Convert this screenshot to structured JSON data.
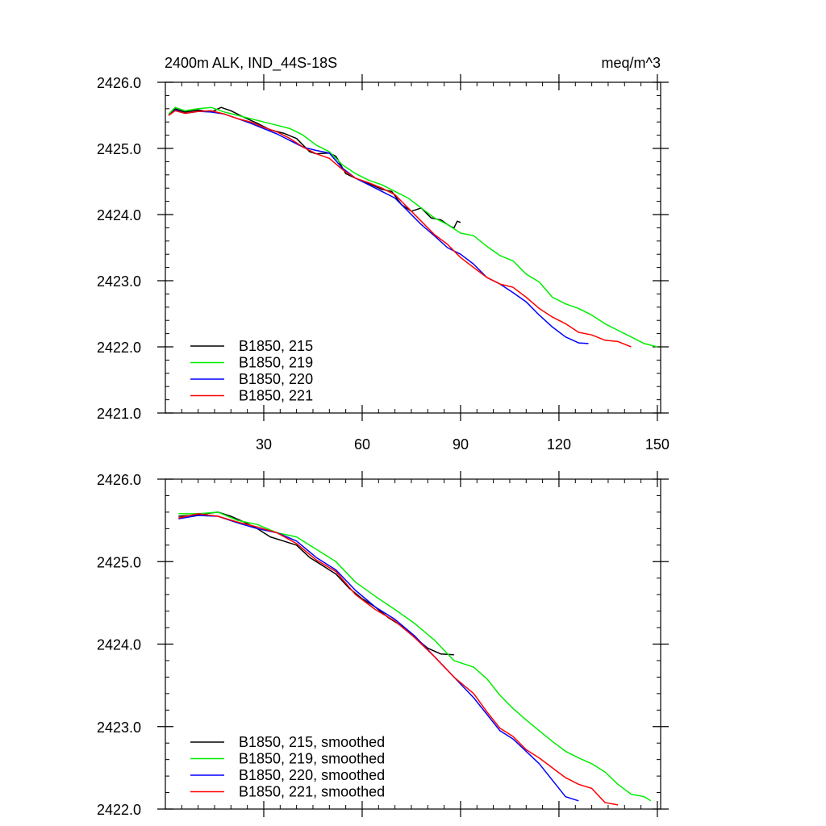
{
  "chart_data": [
    {
      "type": "line",
      "title": "2400m ALK, IND_44S-18S",
      "units": "meq/m^3",
      "xlim": [
        0,
        151
      ],
      "ylim": [
        2421.0,
        2426.0
      ],
      "xticks": [
        30,
        60,
        90,
        120,
        150
      ],
      "yticks": [
        2421.0,
        2422.0,
        2423.0,
        2424.0,
        2425.0,
        2426.0
      ],
      "ytick_labels": [
        "2421.0",
        "2422.0",
        "2423.0",
        "2424.0",
        "2425.0",
        "2426.0"
      ],
      "legend_position": "bottom-left",
      "series": [
        {
          "name": "B1850, 215",
          "color": "#000000",
          "x": [
            1,
            3,
            6,
            10,
            14,
            17,
            20,
            24,
            28,
            32,
            36,
            40,
            44,
            46,
            50,
            52,
            55,
            58,
            62,
            66,
            69,
            72,
            75,
            78,
            81,
            84,
            86,
            87,
            88,
            89,
            90
          ],
          "y": [
            2425.5,
            2425.6,
            2425.55,
            2425.58,
            2425.55,
            2425.62,
            2425.57,
            2425.47,
            2425.38,
            2425.28,
            2425.23,
            2425.15,
            2424.95,
            2424.92,
            2424.93,
            2424.88,
            2424.62,
            2424.55,
            2424.47,
            2424.38,
            2424.35,
            2424.15,
            2424.05,
            2424.1,
            2423.95,
            2423.92,
            2423.85,
            2423.82,
            2423.8,
            2423.9,
            2423.88
          ]
        },
        {
          "name": "B1850, 219",
          "color": "#00ee00",
          "x": [
            1,
            3,
            6,
            10,
            14,
            18,
            22,
            26,
            30,
            34,
            38,
            42,
            46,
            50,
            54,
            58,
            62,
            66,
            70,
            74,
            78,
            82,
            86,
            90,
            94,
            98,
            102,
            106,
            110,
            114,
            118,
            122,
            126,
            130,
            134,
            138,
            142,
            146,
            150
          ],
          "y": [
            2425.52,
            2425.62,
            2425.57,
            2425.6,
            2425.62,
            2425.55,
            2425.5,
            2425.45,
            2425.4,
            2425.35,
            2425.3,
            2425.2,
            2425.05,
            2424.95,
            2424.75,
            2424.62,
            2424.52,
            2424.45,
            2424.35,
            2424.25,
            2424.1,
            2423.95,
            2423.85,
            2423.72,
            2423.68,
            2423.52,
            2423.38,
            2423.3,
            2423.1,
            2422.98,
            2422.75,
            2422.65,
            2422.58,
            2422.48,
            2422.35,
            2422.25,
            2422.15,
            2422.05,
            2422.0
          ]
        },
        {
          "name": "B1850, 220",
          "color": "#0000ff",
          "x": [
            1,
            3,
            6,
            10,
            14,
            18,
            22,
            26,
            30,
            34,
            38,
            42,
            46,
            50,
            54,
            58,
            62,
            66,
            70,
            74,
            78,
            82,
            86,
            90,
            94,
            98,
            102,
            106,
            110,
            114,
            118,
            122,
            126,
            129
          ],
          "y": [
            2425.5,
            2425.58,
            2425.53,
            2425.56,
            2425.55,
            2425.52,
            2425.45,
            2425.38,
            2425.3,
            2425.22,
            2425.12,
            2425.02,
            2424.97,
            2424.93,
            2424.7,
            2424.55,
            2424.45,
            2424.35,
            2424.25,
            2424.05,
            2423.85,
            2423.68,
            2423.5,
            2423.4,
            2423.25,
            2423.05,
            2422.95,
            2422.82,
            2422.68,
            2422.48,
            2422.3,
            2422.15,
            2422.06,
            2422.05
          ]
        },
        {
          "name": "B1850, 221",
          "color": "#ff0000",
          "x": [
            1,
            3,
            6,
            10,
            14,
            18,
            22,
            26,
            30,
            34,
            38,
            42,
            46,
            50,
            54,
            58,
            62,
            66,
            70,
            74,
            78,
            82,
            86,
            90,
            94,
            98,
            102,
            106,
            110,
            114,
            118,
            122,
            126,
            130,
            134,
            138,
            142
          ],
          "y": [
            2425.5,
            2425.57,
            2425.53,
            2425.56,
            2425.57,
            2425.52,
            2425.45,
            2425.4,
            2425.32,
            2425.25,
            2425.15,
            2425.02,
            2424.92,
            2424.85,
            2424.68,
            2424.55,
            2424.48,
            2424.4,
            2424.3,
            2424.1,
            2423.9,
            2423.7,
            2423.55,
            2423.35,
            2423.2,
            2423.05,
            2422.95,
            2422.9,
            2422.75,
            2422.58,
            2422.45,
            2422.35,
            2422.22,
            2422.18,
            2422.1,
            2422.08,
            2422.0
          ]
        }
      ]
    },
    {
      "type": "line",
      "title": "",
      "xlim": [
        0,
        151
      ],
      "ylim": [
        2422.0,
        2426.0
      ],
      "xticks": [
        30,
        60,
        90,
        120,
        150
      ],
      "yticks": [
        2422.0,
        2423.0,
        2424.0,
        2425.0,
        2426.0
      ],
      "ytick_labels": [
        "2422.0",
        "2423.0",
        "2424.0",
        "2425.0",
        "2426.0"
      ],
      "legend_position": "bottom-left",
      "series": [
        {
          "name": "B1850, 215, smoothed",
          "color": "#000000",
          "x": [
            4,
            8,
            12,
            16,
            20,
            24,
            28,
            32,
            36,
            40,
            44,
            48,
            52,
            56,
            60,
            64,
            68,
            72,
            76,
            80,
            84,
            88
          ],
          "y": [
            2425.55,
            2425.56,
            2425.58,
            2425.6,
            2425.55,
            2425.48,
            2425.4,
            2425.3,
            2425.25,
            2425.2,
            2425.05,
            2424.95,
            2424.85,
            2424.68,
            2424.55,
            2424.45,
            2424.32,
            2424.22,
            2424.08,
            2423.95,
            2423.88,
            2423.87
          ]
        },
        {
          "name": "B1850, 219, smoothed",
          "color": "#00ee00",
          "x": [
            4,
            10,
            16,
            22,
            28,
            34,
            40,
            46,
            52,
            58,
            64,
            70,
            76,
            82,
            88,
            94,
            98,
            102,
            106,
            110,
            114,
            118,
            122,
            126,
            130,
            134,
            138,
            142,
            146,
            148
          ],
          "y": [
            2425.58,
            2425.58,
            2425.6,
            2425.5,
            2425.45,
            2425.35,
            2425.3,
            2425.15,
            2425.0,
            2424.75,
            2424.58,
            2424.42,
            2424.25,
            2424.05,
            2423.8,
            2423.72,
            2423.58,
            2423.38,
            2423.22,
            2423.08,
            2422.95,
            2422.82,
            2422.7,
            2422.62,
            2422.55,
            2422.45,
            2422.3,
            2422.18,
            2422.15,
            2422.1
          ]
        },
        {
          "name": "B1850, 220, smoothed",
          "color": "#0000ff",
          "x": [
            4,
            10,
            16,
            22,
            28,
            34,
            40,
            46,
            52,
            58,
            64,
            70,
            76,
            82,
            88,
            94,
            98,
            102,
            106,
            110,
            114,
            118,
            122,
            126
          ],
          "y": [
            2425.52,
            2425.56,
            2425.55,
            2425.47,
            2425.4,
            2425.35,
            2425.25,
            2425.05,
            2424.9,
            2424.65,
            2424.45,
            2424.3,
            2424.1,
            2423.85,
            2423.6,
            2423.35,
            2423.15,
            2422.95,
            2422.85,
            2422.7,
            2422.55,
            2422.35,
            2422.15,
            2422.1
          ]
        },
        {
          "name": "B1850, 221, smoothed",
          "color": "#ff0000",
          "x": [
            4,
            10,
            16,
            22,
            28,
            34,
            40,
            46,
            52,
            58,
            64,
            70,
            76,
            82,
            88,
            94,
            98,
            102,
            106,
            110,
            114,
            118,
            122,
            126,
            130,
            134,
            138
          ],
          "y": [
            2425.53,
            2425.58,
            2425.55,
            2425.48,
            2425.42,
            2425.35,
            2425.22,
            2425.02,
            2424.88,
            2424.6,
            2424.42,
            2424.28,
            2424.08,
            2423.85,
            2423.6,
            2423.4,
            2423.18,
            2422.98,
            2422.88,
            2422.72,
            2422.62,
            2422.5,
            2422.38,
            2422.3,
            2422.25,
            2422.08,
            2422.05
          ]
        }
      ]
    }
  ]
}
